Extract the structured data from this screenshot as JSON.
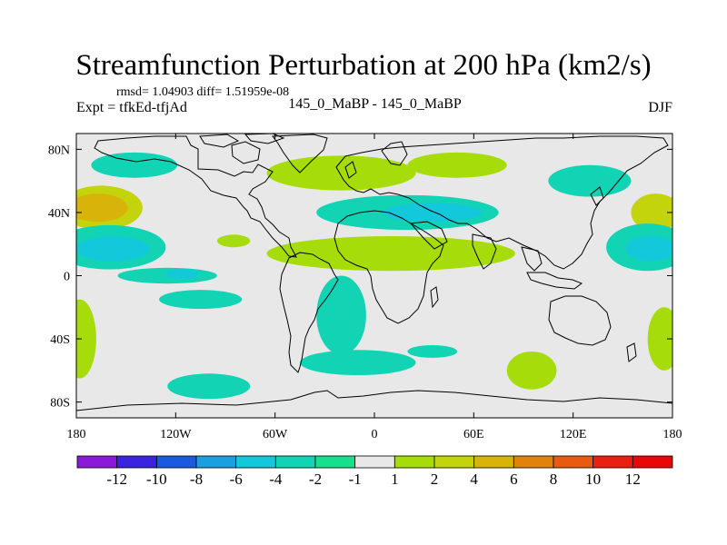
{
  "header": {
    "title": "Streamfunction Perturbation at 200 hPa (km2/s)",
    "stats": "rmsd= 1.04903 diff= 1.51959e-08",
    "expt": "Expt = tfkEd-tfjAd",
    "cases": "145_0_MaBP - 145_0_MaBP",
    "season": "DJF"
  },
  "chart_data": {
    "type": "heatmap",
    "title": "Streamfunction Perturbation at 200 hPa (km2/s)",
    "x_ticks": [
      {
        "value": -180,
        "label": "180"
      },
      {
        "value": -120,
        "label": "120W"
      },
      {
        "value": -60,
        "label": "60W"
      },
      {
        "value": 0,
        "label": "0"
      },
      {
        "value": 60,
        "label": "60E"
      },
      {
        "value": 120,
        "label": "120E"
      },
      {
        "value": 180,
        "label": "180"
      }
    ],
    "y_ticks": [
      {
        "value": 80,
        "label": "80N"
      },
      {
        "value": 40,
        "label": "40N"
      },
      {
        "value": 0,
        "label": "0"
      },
      {
        "value": -40,
        "label": "40S"
      },
      {
        "value": -80,
        "label": "80S"
      }
    ],
    "xlim": [
      -180,
      180
    ],
    "ylim": [
      -90,
      90
    ],
    "levels": [
      "-12",
      "-10",
      "-8",
      "-6",
      "-4",
      "-2",
      "-1",
      "1",
      "2",
      "4",
      "6",
      "8",
      "10",
      "12"
    ],
    "colors": [
      "#8a1ad8",
      "#3b24de",
      "#1a5ae0",
      "#1aa0e0",
      "#14c8dc",
      "#12d4b4",
      "#16e08c",
      "#e8e8e8",
      "#a6dc0a",
      "#c4d40c",
      "#d8b40a",
      "#e0820c",
      "#e85a0e",
      "#e82010",
      "#e80808"
    ],
    "features": [
      {
        "lon": -145,
        "lat": 70,
        "rx": 26,
        "ry": 8,
        "level": "-2 to -1"
      },
      {
        "lon": -165,
        "lat": 43,
        "rx": 25,
        "ry": 14,
        "level": "2 to 4"
      },
      {
        "lon": -167,
        "lat": 43,
        "rx": 18,
        "ry": 9,
        "level": "4 to 6"
      },
      {
        "lon": -160,
        "lat": 18,
        "rx": 34,
        "ry": 14,
        "level": "-2 to -1"
      },
      {
        "lon": -158,
        "lat": 17,
        "rx": 22,
        "ry": 8,
        "level": "-4 to -2"
      },
      {
        "lon": -125,
        "lat": 0,
        "rx": 30,
        "ry": 5,
        "level": "-2 to -1"
      },
      {
        "lon": -116,
        "lat": 1,
        "rx": 10,
        "ry": 3,
        "level": "-4 to -2"
      },
      {
        "lon": -105,
        "lat": -15,
        "rx": 25,
        "ry": 6,
        "level": "-2 to -1"
      },
      {
        "lon": -178,
        "lat": -40,
        "rx": 10,
        "ry": 25,
        "level": "1 to 2"
      },
      {
        "lon": -100,
        "lat": -70,
        "rx": 25,
        "ry": 8,
        "level": "-2 to -1"
      },
      {
        "lon": -20,
        "lat": 65,
        "rx": 45,
        "ry": 11,
        "level": "1 to 2"
      },
      {
        "lon": 50,
        "lat": 70,
        "rx": 30,
        "ry": 8,
        "level": "1 to 2"
      },
      {
        "lon": 20,
        "lat": 40,
        "rx": 55,
        "ry": 11,
        "level": "-2 to -1"
      },
      {
        "lon": 35,
        "lat": 40,
        "rx": 30,
        "ry": 6,
        "level": "-4 to -2"
      },
      {
        "lon": 10,
        "lat": 14,
        "rx": 75,
        "ry": 11,
        "level": "1 to 2"
      },
      {
        "lon": -85,
        "lat": 22,
        "rx": 10,
        "ry": 4,
        "level": "1 to 2"
      },
      {
        "lon": -20,
        "lat": -25,
        "rx": 15,
        "ry": 25,
        "level": "-2 to -1"
      },
      {
        "lon": -10,
        "lat": -55,
        "rx": 35,
        "ry": 8,
        "level": "-2 to -1"
      },
      {
        "lon": 35,
        "lat": -48,
        "rx": 15,
        "ry": 4,
        "level": "-2 to -1"
      },
      {
        "lon": 95,
        "lat": -60,
        "rx": 15,
        "ry": 12,
        "level": "1 to 2"
      },
      {
        "lon": 130,
        "lat": 60,
        "rx": 25,
        "ry": 10,
        "level": "-2 to -1"
      },
      {
        "lon": 170,
        "lat": 40,
        "rx": 15,
        "ry": 12,
        "level": "2 to 4"
      },
      {
        "lon": 165,
        "lat": 18,
        "rx": 25,
        "ry": 15,
        "level": "-2 to -1"
      },
      {
        "lon": 167,
        "lat": 17,
        "rx": 15,
        "ry": 8,
        "level": "-4 to -2"
      },
      {
        "lon": 175,
        "lat": -40,
        "rx": 10,
        "ry": 20,
        "level": "1 to 2"
      }
    ]
  }
}
